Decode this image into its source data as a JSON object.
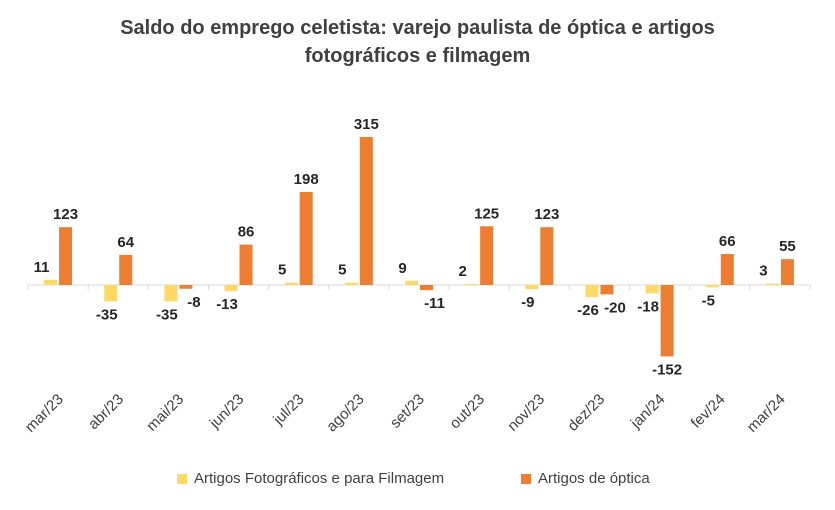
{
  "chart_data": {
    "type": "bar",
    "title": "Saldo do emprego celetista: varejo paulista de óptica e artigos fotográficos e filmagem",
    "title_lines": [
      "Saldo do emprego celetista: varejo paulista de óptica e artigos",
      "fotográficos e filmagem"
    ],
    "categories": [
      "mar/23",
      "abr/23",
      "mai/23",
      "jun/23",
      "jul/23",
      "ago/23",
      "set/23",
      "out/23",
      "nov/23",
      "dez/23",
      "jan/24",
      "fev/24",
      "mar/24"
    ],
    "series": [
      {
        "name": "Artigos Fotográficos e para Filmagem",
        "color": "#FFD966",
        "values": [
          11,
          -35,
          -35,
          -13,
          5,
          5,
          9,
          2,
          -9,
          -26,
          -18,
          -5,
          3
        ]
      },
      {
        "name": "Artigos de óptica",
        "color": "#ED7D31",
        "values": [
          123,
          64,
          -8,
          86,
          198,
          315,
          -11,
          125,
          123,
          -20,
          -152,
          66,
          55
        ]
      }
    ],
    "ylim": [
      -152,
      315
    ],
    "grid": false,
    "legend_position": "bottom",
    "data_labels": true
  }
}
